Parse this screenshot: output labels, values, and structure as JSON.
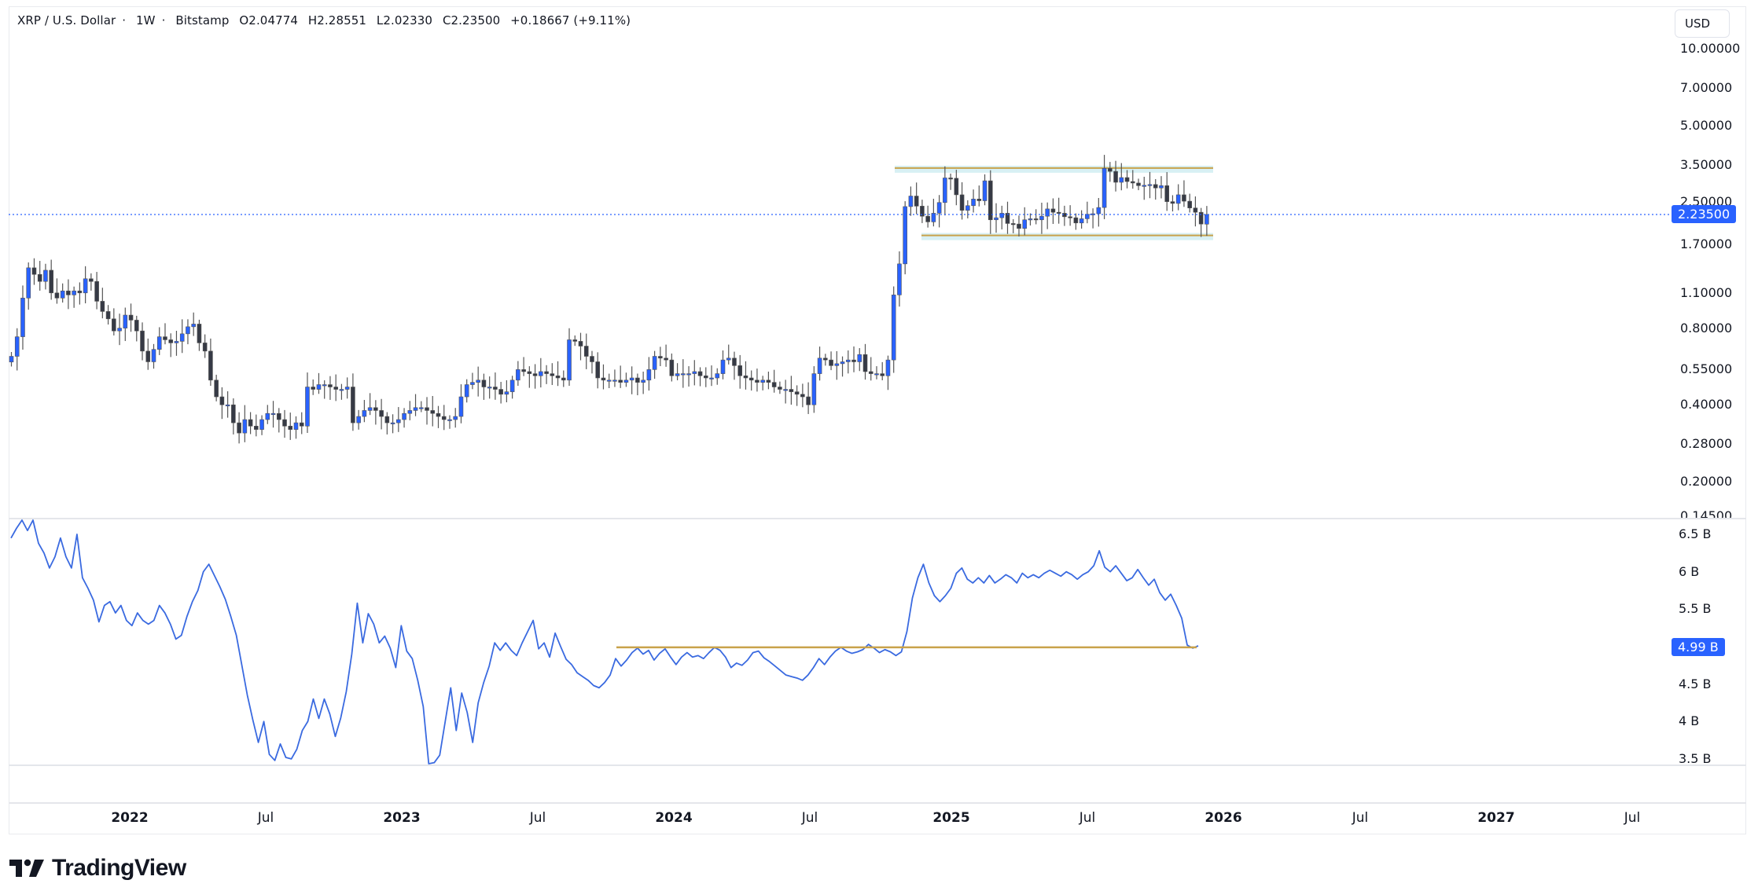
{
  "header": {
    "symbol": "XRP / U.S. Dollar",
    "interval": "1W",
    "exchange": "Bitstamp",
    "open": "O2.04774",
    "high": "H2.28551",
    "low": "L2.02330",
    "close": "C2.23500",
    "change": "+0.18667 (+9.11%)",
    "separator": "·"
  },
  "currency_button": {
    "label": "USD"
  },
  "price_axis": {
    "labels": [
      "10.00000",
      "7.00000",
      "5.00000",
      "3.50000",
      "2.50000",
      "1.70000",
      "1.10000",
      "0.80000",
      "0.55000",
      "0.40000",
      "0.28000",
      "0.20000",
      "0.14500"
    ],
    "current_price": "2.23500"
  },
  "volume_axis": {
    "labels": [
      "6.5 B",
      "6 B",
      "5.5 B",
      "4.5 B",
      "4 B",
      "3.5 B"
    ],
    "current_value": "4.99 B"
  },
  "time_axis": {
    "labels": [
      {
        "text": "2022",
        "year": true
      },
      {
        "text": "Jul",
        "year": false
      },
      {
        "text": "2023",
        "year": true
      },
      {
        "text": "Jul",
        "year": false
      },
      {
        "text": "2024",
        "year": true
      },
      {
        "text": "Jul",
        "year": false
      },
      {
        "text": "2025",
        "year": true
      },
      {
        "text": "Jul",
        "year": false
      },
      {
        "text": "2026",
        "year": true
      },
      {
        "text": "Jul",
        "year": false
      },
      {
        "text": "2027",
        "year": true
      },
      {
        "text": "Jul",
        "year": false
      }
    ]
  },
  "logo": {
    "text": "TradingView"
  },
  "colors": {
    "up": "#2962ff",
    "down": "#363a45",
    "volume_line": "#3a6ae0",
    "level_line": "#c9a24a",
    "level_band": "#d8f0f4",
    "accent": "#2962ff"
  },
  "chart_data": [
    {
      "type": "candlestick",
      "title": "XRP / U.S. Dollar · 1W · Bitstamp",
      "xlabel": "",
      "ylabel": "USD",
      "scale": "log",
      "ylim": [
        0.145,
        10.0
      ],
      "x_ticks": [
        "2022",
        "Jul",
        "2023",
        "Jul",
        "2024",
        "Jul",
        "2025",
        "Jul",
        "2026",
        "Jul",
        "2027",
        "Jul"
      ],
      "y_ticks": [
        10.0,
        7.0,
        5.0,
        3.5,
        2.5,
        1.7,
        1.1,
        0.8,
        0.55,
        0.4,
        0.28,
        0.2,
        0.145
      ],
      "last": {
        "open": 2.04774,
        "high": 2.28551,
        "low": 2.0233,
        "close": 2.235,
        "change": 0.18667,
        "change_pct": 9.11
      },
      "annotations": [
        {
          "type": "horizontal_zone",
          "label": "resistance",
          "price": 3.4,
          "from": "2024-12",
          "to": "2025-11"
        },
        {
          "type": "horizontal_zone",
          "label": "support",
          "price": 1.85,
          "from": "2024-12",
          "to": "2025-11"
        }
      ],
      "closes_weekly_approx": [
        0.62,
        0.74,
        1.05,
        1.38,
        1.3,
        1.22,
        1.35,
        1.1,
        1.05,
        1.12,
        1.08,
        1.12,
        1.1,
        1.25,
        1.22,
        1.02,
        0.93,
        0.87,
        0.78,
        0.8,
        0.9,
        0.86,
        0.78,
        0.65,
        0.59,
        0.66,
        0.74,
        0.72,
        0.7,
        0.71,
        0.76,
        0.81,
        0.83,
        0.7,
        0.65,
        0.5,
        0.43,
        0.4,
        0.4,
        0.34,
        0.31,
        0.35,
        0.33,
        0.32,
        0.35,
        0.37,
        0.37,
        0.35,
        0.33,
        0.32,
        0.34,
        0.33,
        0.47,
        0.46,
        0.48,
        0.48,
        0.47,
        0.46,
        0.46,
        0.47,
        0.34,
        0.36,
        0.38,
        0.39,
        0.38,
        0.36,
        0.34,
        0.34,
        0.35,
        0.37,
        0.38,
        0.39,
        0.39,
        0.38,
        0.37,
        0.36,
        0.35,
        0.35,
        0.36,
        0.43,
        0.48,
        0.49,
        0.5,
        0.47,
        0.47,
        0.46,
        0.44,
        0.45,
        0.5,
        0.55,
        0.54,
        0.53,
        0.52,
        0.54,
        0.53,
        0.52,
        0.51,
        0.5,
        0.72,
        0.71,
        0.68,
        0.62,
        0.59,
        0.51,
        0.5,
        0.5,
        0.5,
        0.49,
        0.5,
        0.51,
        0.49,
        0.5,
        0.55,
        0.62,
        0.61,
        0.6,
        0.52,
        0.53,
        0.53,
        0.53,
        0.54,
        0.52,
        0.51,
        0.51,
        0.53,
        0.6,
        0.61,
        0.57,
        0.52,
        0.51,
        0.5,
        0.49,
        0.5,
        0.49,
        0.47,
        0.46,
        0.46,
        0.45,
        0.44,
        0.43,
        0.4,
        0.53,
        0.61,
        0.6,
        0.57,
        0.58,
        0.59,
        0.6,
        0.59,
        0.63,
        0.54,
        0.53,
        0.53,
        0.52,
        0.6,
        1.08,
        1.43,
        2.4,
        2.64,
        2.41,
        2.2,
        2.09,
        2.26,
        2.49,
        3.11,
        3.1,
        2.67,
        2.32,
        2.42,
        2.57,
        2.53,
        3.03,
        2.13,
        2.17,
        2.26,
        2.06,
        2.05,
        1.97,
        2.13,
        2.15,
        2.13,
        2.2,
        2.35,
        2.28,
        2.26,
        2.19,
        2.17,
        2.07,
        2.15,
        2.24,
        2.25,
        2.38,
        3.39,
        3.3,
        2.99,
        3.12,
        3.01,
        2.97,
        2.9,
        2.91,
        2.93,
        2.84,
        2.9,
        2.51,
        2.47,
        2.67,
        2.52,
        2.37,
        2.28,
        2.05,
        2.235
      ]
    },
    {
      "type": "line",
      "title": "Volume indicator",
      "ylabel": "",
      "ylim": [
        3.5,
        6.6
      ],
      "unit": "B",
      "y_ticks": [
        6.5,
        6.0,
        5.5,
        4.5,
        4.0,
        3.5
      ],
      "last": 4.99,
      "annotations": [
        {
          "type": "horizontal_line",
          "value": 4.99,
          "from": "2023-10",
          "to": "2025-11"
        }
      ],
      "values_weekly_approx": [
        6.45,
        6.58,
        6.7,
        6.55,
        6.7,
        6.38,
        6.25,
        6.05,
        6.2,
        6.45,
        6.2,
        6.05,
        6.5,
        5.92,
        5.78,
        5.62,
        5.33,
        5.55,
        5.6,
        5.45,
        5.55,
        5.35,
        5.28,
        5.45,
        5.35,
        5.3,
        5.35,
        5.55,
        5.45,
        5.3,
        5.1,
        5.15,
        5.4,
        5.6,
        5.75,
        6.0,
        6.1,
        5.95,
        5.8,
        5.63,
        5.4,
        5.15,
        4.75,
        4.35,
        4.02,
        3.72,
        4.0,
        3.56,
        3.48,
        3.7,
        3.52,
        3.5,
        3.63,
        3.88,
        4.0,
        4.3,
        4.04,
        4.3,
        4.1,
        3.8,
        4.05,
        4.4,
        4.9,
        5.58,
        5.05,
        5.44,
        5.3,
        5.05,
        5.14,
        4.98,
        4.72,
        5.28,
        4.94,
        4.84,
        4.55,
        4.2,
        3.4,
        3.45,
        3.55,
        4.0,
        4.45,
        3.88,
        4.38,
        4.12,
        3.72,
        4.25,
        4.52,
        4.74,
        5.05,
        4.95,
        5.05,
        4.95,
        4.88,
        5.05,
        5.2,
        5.35,
        4.97,
        5.05,
        4.86,
        5.18,
        5.0,
        4.83,
        4.76,
        4.65,
        4.6,
        4.55,
        4.48,
        4.45,
        4.52,
        4.62,
        4.84,
        4.74,
        4.82,
        4.92,
        4.98,
        4.9,
        4.95,
        4.82,
        4.91,
        4.97,
        4.86,
        4.76,
        4.86,
        4.92,
        4.86,
        4.88,
        4.84,
        4.92,
        4.99,
        4.95,
        4.86,
        4.72,
        4.78,
        4.75,
        4.82,
        4.92,
        4.94,
        4.85,
        4.8,
        4.74,
        4.68,
        4.62,
        4.6,
        4.58,
        4.55,
        4.62,
        4.72,
        4.84,
        4.76,
        4.86,
        4.94,
        4.99,
        4.94,
        4.91,
        4.93,
        4.96,
        5.03,
        4.98,
        4.92,
        4.96,
        4.93,
        4.88,
        4.93,
        5.2,
        5.65,
        5.92,
        6.1,
        5.85,
        5.68,
        5.6,
        5.68,
        5.78,
        5.98,
        6.05,
        5.9,
        5.85,
        5.92,
        5.85,
        5.95,
        5.85,
        5.9,
        5.96,
        5.92,
        5.85,
        5.98,
        5.92,
        5.96,
        5.92,
        5.98,
        6.02,
        5.98,
        5.94,
        6.0,
        5.96,
        5.9,
        5.96,
        6.0,
        6.08,
        6.28,
        6.06,
        6.0,
        6.08,
        5.98,
        5.88,
        5.92,
        6.03,
        5.92,
        5.82,
        5.9,
        5.72,
        5.62,
        5.7,
        5.55,
        5.38,
        5.02,
        4.98,
        5.01
      ]
    }
  ]
}
